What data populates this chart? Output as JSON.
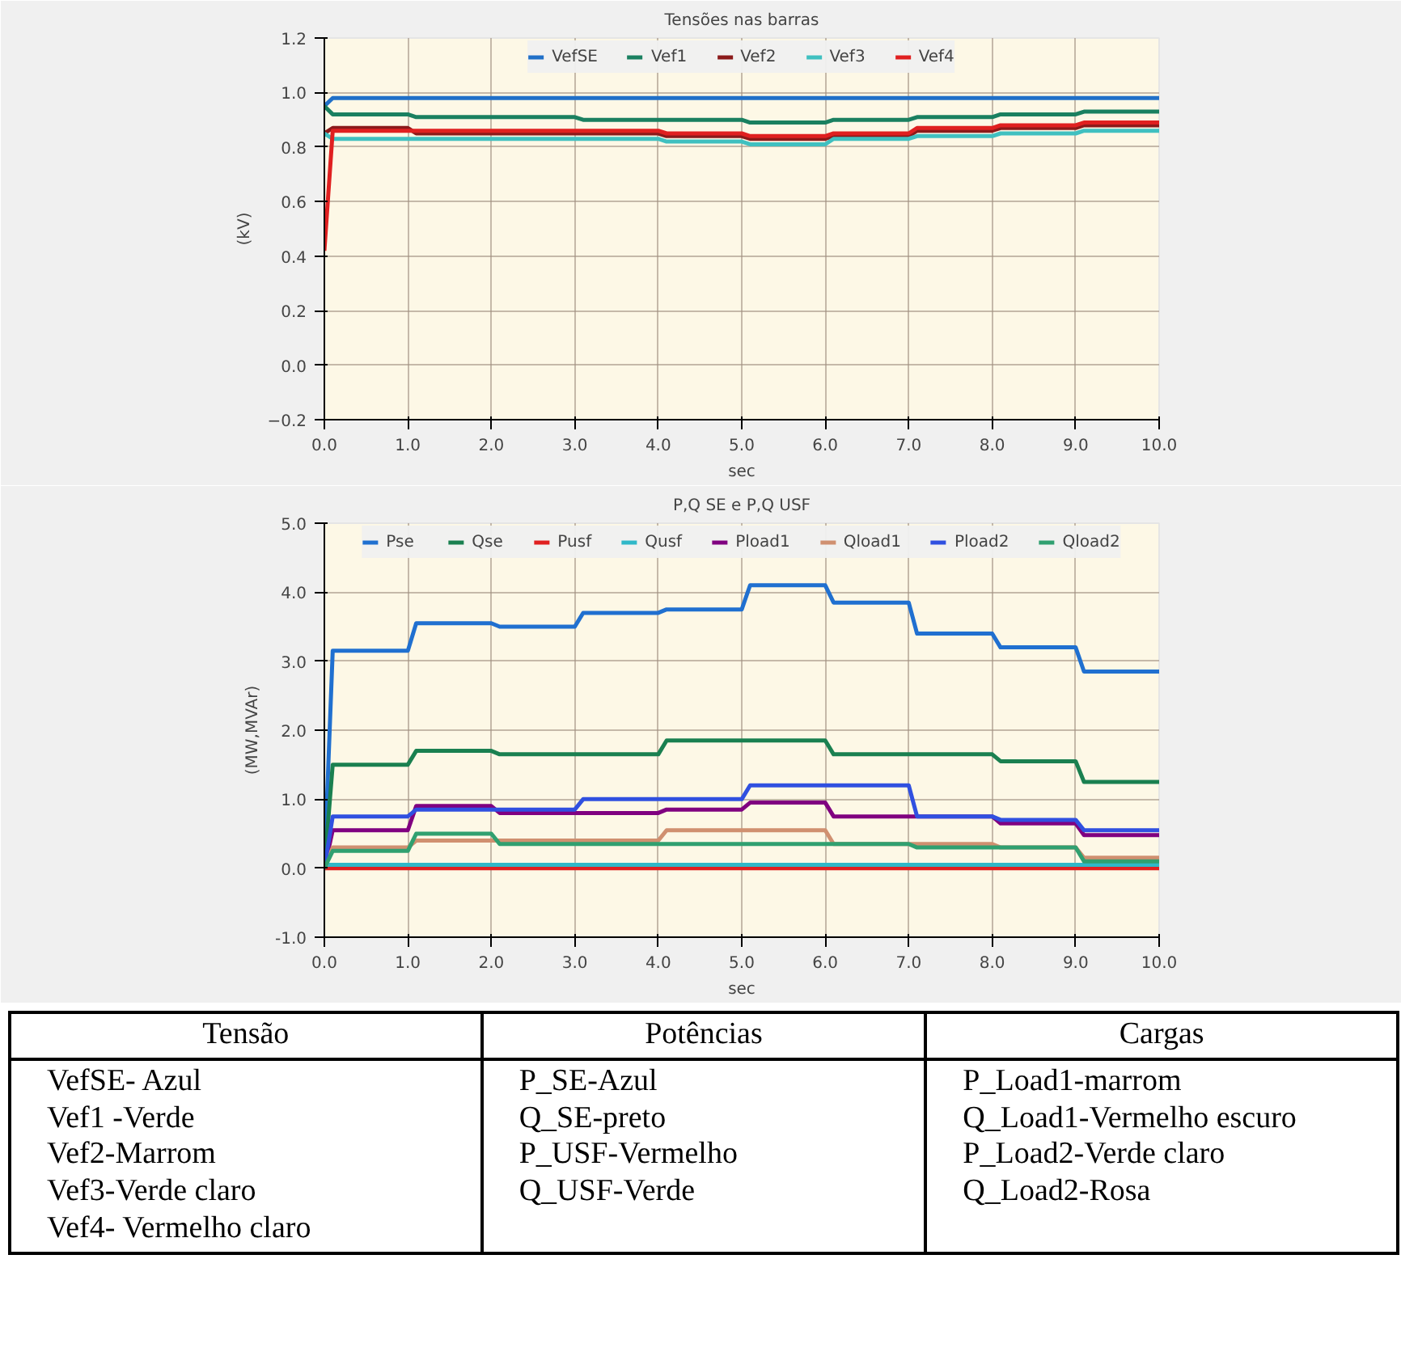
{
  "chart_data": [
    {
      "type": "line",
      "title": "Tensões nas barras",
      "xlabel": "sec",
      "ylabel": "(kV)",
      "grid": true,
      "legend": "top",
      "x": [
        0,
        0.1,
        1,
        1.1,
        2,
        2.1,
        3,
        3.1,
        4,
        4.1,
        5,
        5.1,
        6,
        6.1,
        7,
        7.1,
        8,
        8.1,
        9,
        9.1,
        10
      ],
      "xlim": [
        0,
        10
      ],
      "ylim": [
        -0.2,
        1.2
      ],
      "xticks": [
        {
          "value": 0,
          "label": "0.0"
        },
        {
          "value": 1,
          "label": "1.0"
        },
        {
          "value": 2,
          "label": "2.0"
        },
        {
          "value": 3,
          "label": "3.0"
        },
        {
          "value": 4,
          "label": "4.0"
        },
        {
          "value": 5,
          "label": "5.0"
        },
        {
          "value": 6,
          "label": "6.0"
        },
        {
          "value": 7,
          "label": "7.0"
        },
        {
          "value": 8,
          "label": "8.0"
        },
        {
          "value": 9,
          "label": "9.0"
        },
        {
          "value": 10,
          "label": "10.0"
        }
      ],
      "yticks": [
        -0.2,
        {
          "value": 0,
          "label": "0.0"
        },
        0.2,
        0.4,
        0.6,
        0.8,
        {
          "value": 1,
          "label": "1.0"
        },
        1.2
      ],
      "series": [
        {
          "name": "VefSE",
          "color": "#2070c8",
          "values": [
            0.95,
            0.98,
            0.98,
            0.98,
            0.98,
            0.98,
            0.98,
            0.98,
            0.98,
            0.98,
            0.98,
            0.98,
            0.98,
            0.98,
            0.98,
            0.98,
            0.98,
            0.98,
            0.98,
            0.98,
            0.98
          ]
        },
        {
          "name": "Vef1",
          "color": "#1a8060",
          "values": [
            0.95,
            0.92,
            0.92,
            0.91,
            0.91,
            0.91,
            0.91,
            0.9,
            0.9,
            0.9,
            0.9,
            0.89,
            0.89,
            0.9,
            0.9,
            0.91,
            0.91,
            0.92,
            0.92,
            0.93,
            0.93
          ]
        },
        {
          "name": "Vef2",
          "color": "#8b1a1a",
          "values": [
            0.85,
            0.87,
            0.87,
            0.85,
            0.85,
            0.85,
            0.85,
            0.85,
            0.85,
            0.84,
            0.84,
            0.83,
            0.83,
            0.84,
            0.84,
            0.86,
            0.86,
            0.87,
            0.87,
            0.88,
            0.88
          ]
        },
        {
          "name": "Vef3",
          "color": "#40c0c0",
          "values": [
            0.85,
            0.83,
            0.83,
            0.83,
            0.83,
            0.83,
            0.83,
            0.83,
            0.83,
            0.82,
            0.82,
            0.81,
            0.81,
            0.83,
            0.83,
            0.84,
            0.84,
            0.85,
            0.85,
            0.86,
            0.86
          ]
        },
        {
          "name": "Vef4",
          "color": "#e02020",
          "values": [
            0.42,
            0.86,
            0.86,
            0.86,
            0.86,
            0.86,
            0.86,
            0.86,
            0.86,
            0.85,
            0.85,
            0.84,
            0.84,
            0.85,
            0.85,
            0.87,
            0.87,
            0.88,
            0.88,
            0.89,
            0.89
          ]
        }
      ]
    },
    {
      "type": "line",
      "title": "P,Q SE e P,Q USF",
      "xlabel": "sec",
      "ylabel": "(MW,MVAr)",
      "grid": true,
      "legend": "top",
      "x": [
        0,
        0.1,
        1,
        1.1,
        2,
        2.1,
        3,
        3.1,
        4,
        4.1,
        5,
        5.1,
        6,
        6.1,
        7,
        7.1,
        8,
        8.1,
        9,
        9.1,
        10
      ],
      "xlim": [
        0,
        10
      ],
      "ylim": [
        -1.0,
        5.0
      ],
      "xticks": [
        {
          "value": 0,
          "label": "0.0"
        },
        {
          "value": 1,
          "label": "1.0"
        },
        {
          "value": 2,
          "label": "2.0"
        },
        {
          "value": 3,
          "label": "3.0"
        },
        {
          "value": 4,
          "label": "4.0"
        },
        {
          "value": 5,
          "label": "5.0"
        },
        {
          "value": 6,
          "label": "6.0"
        },
        {
          "value": 7,
          "label": "7.0"
        },
        {
          "value": 8,
          "label": "8.0"
        },
        {
          "value": 9,
          "label": "9.0"
        },
        {
          "value": 10,
          "label": "10.0"
        }
      ],
      "yticks": [
        {
          "value": -1,
          "label": "-1.0"
        },
        {
          "value": 0,
          "label": "0.0"
        },
        {
          "value": 1,
          "label": "1.0"
        },
        {
          "value": 2,
          "label": "2.0"
        },
        {
          "value": 3,
          "label": "3.0"
        },
        {
          "value": 4,
          "label": "4.0"
        },
        {
          "value": 5,
          "label": "5.0"
        }
      ],
      "series": [
        {
          "name": "Pse",
          "color": "#2070d0",
          "values": [
            0,
            3.15,
            3.15,
            3.55,
            3.55,
            3.5,
            3.5,
            3.7,
            3.7,
            3.75,
            3.75,
            4.1,
            4.1,
            3.85,
            3.85,
            3.4,
            3.4,
            3.2,
            3.2,
            2.85,
            2.85
          ]
        },
        {
          "name": "Qse",
          "color": "#1a8050",
          "values": [
            0,
            1.5,
            1.5,
            1.7,
            1.7,
            1.65,
            1.65,
            1.65,
            1.65,
            1.85,
            1.85,
            1.85,
            1.85,
            1.65,
            1.65,
            1.65,
            1.65,
            1.55,
            1.55,
            1.25,
            1.25
          ]
        },
        {
          "name": "Pusf",
          "color": "#e02020",
          "values": [
            0,
            0,
            0,
            0,
            0,
            0,
            0,
            0,
            0,
            0,
            0,
            0,
            0,
            0,
            0,
            0,
            0,
            0,
            0,
            0,
            0
          ]
        },
        {
          "name": "Qusf",
          "color": "#30b8c8",
          "values": [
            0.05,
            0.05,
            0.05,
            0.05,
            0.05,
            0.05,
            0.05,
            0.05,
            0.05,
            0.05,
            0.05,
            0.05,
            0.05,
            0.05,
            0.05,
            0.05,
            0.05,
            0.05,
            0.05,
            0.05,
            0.05
          ]
        },
        {
          "name": "Pload1",
          "color": "#800080",
          "values": [
            0,
            0.55,
            0.55,
            0.9,
            0.9,
            0.8,
            0.8,
            0.8,
            0.8,
            0.85,
            0.85,
            0.95,
            0.95,
            0.75,
            0.75,
            0.75,
            0.75,
            0.65,
            0.65,
            0.48,
            0.48
          ]
        },
        {
          "name": "Qload1",
          "color": "#d09070",
          "values": [
            0,
            0.3,
            0.3,
            0.4,
            0.4,
            0.4,
            0.4,
            0.4,
            0.4,
            0.55,
            0.55,
            0.55,
            0.55,
            0.35,
            0.35,
            0.35,
            0.35,
            0.3,
            0.3,
            0.15,
            0.15
          ]
        },
        {
          "name": "Pload2",
          "color": "#3050e0",
          "values": [
            0,
            0.75,
            0.75,
            0.85,
            0.85,
            0.85,
            0.85,
            1.0,
            1.0,
            1.0,
            1.0,
            1.2,
            1.2,
            1.2,
            1.2,
            0.75,
            0.75,
            0.7,
            0.7,
            0.55,
            0.55
          ]
        },
        {
          "name": "Qload2",
          "color": "#30a070",
          "values": [
            0,
            0.25,
            0.25,
            0.5,
            0.5,
            0.35,
            0.35,
            0.35,
            0.35,
            0.35,
            0.35,
            0.35,
            0.35,
            0.35,
            0.35,
            0.3,
            0.3,
            0.3,
            0.3,
            0.1,
            0.1
          ]
        }
      ]
    },
    {
      "type": "other",
      "categories": [
        "Tensão",
        "Potências",
        "Cargas"
      ],
      "annotations": [
        "VefSE- Azul",
        "Vef1 -Verde",
        "Vef2-Marrom",
        "Vef3-Verde claro",
        "Vef4- Vermelho claro",
        "P_SE-Azul",
        "Q_SE-preto",
        "P_USF-Vermelho",
        "Q_USF-Verde",
        "P_Load1-marrom",
        "Q_Load1-Vermelho escuro",
        "P_Load2-Verde claro",
        "Q_Load2-Rosa"
      ]
    }
  ]
}
